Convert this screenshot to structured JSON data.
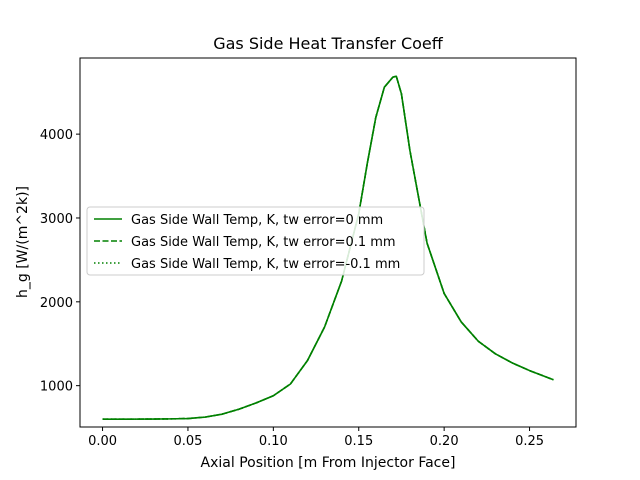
{
  "chart_data": {
    "type": "line",
    "title": "Gas Side Heat Transfer Coeff",
    "xlabel": "Axial Position [m From Injector Face]",
    "ylabel": "h_g [W/(m^2k)]",
    "xlim": [
      -0.0132,
      0.2772
    ],
    "ylim": [
      507,
      4908
    ],
    "xticks": [
      0.0,
      0.05,
      0.1,
      0.15,
      0.2,
      0.25
    ],
    "xtick_labels": [
      "0.00",
      "0.05",
      "0.10",
      "0.15",
      "0.20",
      "0.25"
    ],
    "yticks": [
      1000,
      2000,
      3000,
      4000
    ],
    "ytick_labels": [
      "1000",
      "2000",
      "3000",
      "4000"
    ],
    "grid": false,
    "legend_position": "center-left",
    "line_color": "#008000",
    "x": [
      0.0,
      0.01,
      0.02,
      0.03,
      0.04,
      0.05,
      0.06,
      0.07,
      0.08,
      0.09,
      0.1,
      0.11,
      0.12,
      0.13,
      0.14,
      0.15,
      0.155,
      0.16,
      0.165,
      0.17,
      0.172,
      0.175,
      0.18,
      0.19,
      0.2,
      0.21,
      0.22,
      0.23,
      0.24,
      0.25,
      0.264
    ],
    "series": [
      {
        "name": "Gas Side Wall Temp, K, tw error=0 mm",
        "style": "solid",
        "values": [
          600,
          600,
          601,
          602,
          604,
          608,
          625,
          660,
          720,
          795,
          880,
          1020,
          1300,
          1700,
          2250,
          3050,
          3650,
          4200,
          4560,
          4680,
          4690,
          4480,
          3800,
          2700,
          2100,
          1760,
          1530,
          1380,
          1270,
          1180,
          1070
        ]
      },
      {
        "name": "Gas Side Wall Temp, K, tw error=0.1 mm",
        "style": "dashed",
        "values": [
          600,
          600,
          601,
          602,
          604,
          608,
          625,
          660,
          720,
          795,
          880,
          1020,
          1300,
          1700,
          2250,
          3050,
          3650,
          4200,
          4560,
          4680,
          4690,
          4480,
          3800,
          2700,
          2100,
          1760,
          1530,
          1380,
          1270,
          1180,
          1070
        ]
      },
      {
        "name": "Gas Side Wall Temp, K, tw error=-0.1 mm",
        "style": "dotted",
        "values": [
          600,
          600,
          601,
          602,
          604,
          608,
          625,
          660,
          720,
          795,
          880,
          1020,
          1300,
          1700,
          2250,
          3050,
          3650,
          4200,
          4560,
          4680,
          4690,
          4480,
          3800,
          2700,
          2100,
          1760,
          1530,
          1380,
          1270,
          1180,
          1070
        ]
      }
    ]
  }
}
